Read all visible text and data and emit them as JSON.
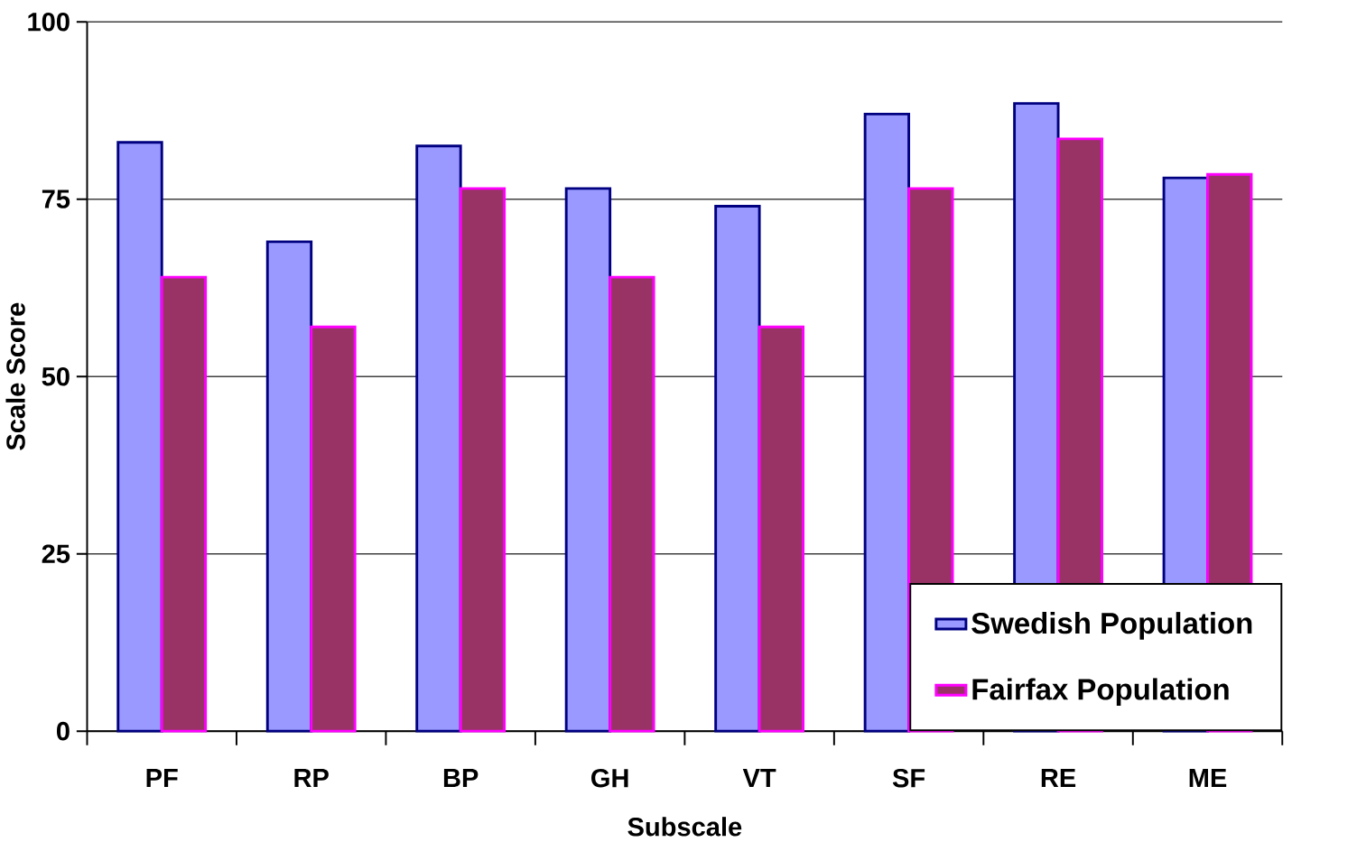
{
  "chart_data": {
    "type": "bar",
    "xlabel": "Subscale",
    "ylabel": "Scale Score",
    "categories": [
      "PF",
      "RP",
      "BP",
      "GH",
      "VT",
      "SF",
      "RE",
      "ME"
    ],
    "series": [
      {
        "name": "Swedish Population",
        "color": "#9999ff",
        "values": [
          83,
          69,
          82.5,
          76.5,
          74,
          87,
          88.5,
          78
        ]
      },
      {
        "name": "Fairfax Population",
        "color": "#993366",
        "values": [
          64,
          57,
          76.5,
          64,
          57,
          76.5,
          83.5,
          78.5
        ]
      }
    ],
    "ylim": [
      0,
      100
    ],
    "yticks": [
      0,
      25,
      50,
      75,
      100
    ],
    "grid": "y",
    "legend": "bottom right"
  }
}
